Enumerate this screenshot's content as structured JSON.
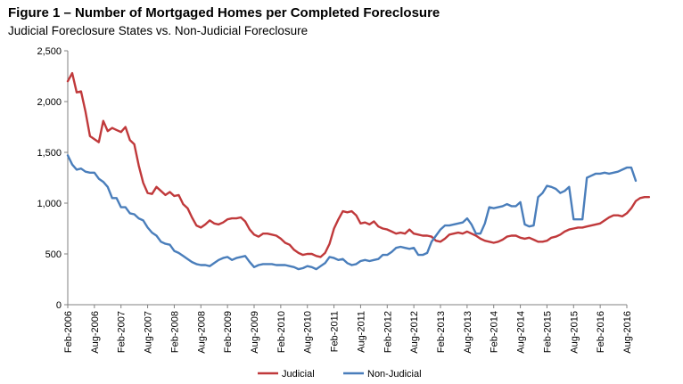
{
  "chart_data": {
    "type": "line",
    "title": "Figure 1 – Number of Mortgaged Homes per Completed Foreclosure",
    "subtitle": "Judicial Foreclosure States vs. Non-Judicial Foreclosure",
    "xlabel": "",
    "ylabel": "",
    "ylim": [
      0,
      2500
    ],
    "yticks": [
      "0",
      "500",
      "1,000",
      "1,500",
      "2,000",
      "2,500"
    ],
    "ytick_values": [
      0,
      500,
      1000,
      1500,
      2000,
      2500
    ],
    "xlim": [
      "Feb-2006",
      "Aug-2016"
    ],
    "xticks": [
      "Feb-2006",
      "Aug-2006",
      "Feb-2007",
      "Aug-2007",
      "Feb-2008",
      "Aug-2008",
      "Feb-2009",
      "Aug-2009",
      "Feb-2010",
      "Aug-2010",
      "Feb-2011",
      "Aug-2011",
      "Feb-2012",
      "Aug-2012",
      "Feb-2013",
      "Aug-2013",
      "Feb-2014",
      "Aug-2014",
      "Feb-2015",
      "Aug-2015",
      "Feb-2016",
      "Aug-2016"
    ],
    "grid": false,
    "legend_position": "bottom",
    "series": [
      {
        "name": "Judicial",
        "color": "#c0393b",
        "points": [
          [
            "Feb-2006",
            2200
          ],
          [
            "Mar-2006",
            2280
          ],
          [
            "Apr-2006",
            2090
          ],
          [
            "May-2006",
            2100
          ],
          [
            "Jun-2006",
            1900
          ],
          [
            "Jul-2006",
            1660
          ],
          [
            "Aug-2006",
            1630
          ],
          [
            "Sep-2006",
            1600
          ],
          [
            "Oct-2006",
            1810
          ],
          [
            "Nov-2006",
            1710
          ],
          [
            "Dec-2006",
            1740
          ],
          [
            "Jan-2007",
            1720
          ],
          [
            "Feb-2007",
            1700
          ],
          [
            "Mar-2007",
            1750
          ],
          [
            "Apr-2007",
            1620
          ],
          [
            "May-2007",
            1580
          ],
          [
            "Jun-2007",
            1370
          ],
          [
            "Jul-2007",
            1200
          ],
          [
            "Aug-2007",
            1100
          ],
          [
            "Sep-2007",
            1090
          ],
          [
            "Oct-2007",
            1160
          ],
          [
            "Nov-2007",
            1120
          ],
          [
            "Dec-2007",
            1080
          ],
          [
            "Jan-2008",
            1110
          ],
          [
            "Feb-2008",
            1070
          ],
          [
            "Mar-2008",
            1080
          ],
          [
            "Apr-2008",
            990
          ],
          [
            "May-2008",
            950
          ],
          [
            "Jun-2008",
            860
          ],
          [
            "Jul-2008",
            780
          ],
          [
            "Aug-2008",
            760
          ],
          [
            "Sep-2008",
            790
          ],
          [
            "Oct-2008",
            830
          ],
          [
            "Nov-2008",
            800
          ],
          [
            "Dec-2008",
            790
          ],
          [
            "Jan-2009",
            810
          ],
          [
            "Feb-2009",
            840
          ],
          [
            "Mar-2009",
            850
          ],
          [
            "Apr-2009",
            850
          ],
          [
            "May-2009",
            860
          ],
          [
            "Jun-2009",
            820
          ],
          [
            "Jul-2009",
            740
          ],
          [
            "Aug-2009",
            690
          ],
          [
            "Sep-2009",
            670
          ],
          [
            "Oct-2009",
            700
          ],
          [
            "Nov-2009",
            700
          ],
          [
            "Dec-2009",
            690
          ],
          [
            "Jan-2010",
            680
          ],
          [
            "Feb-2010",
            650
          ],
          [
            "Mar-2010",
            610
          ],
          [
            "Apr-2010",
            590
          ],
          [
            "May-2010",
            540
          ],
          [
            "Jun-2010",
            510
          ],
          [
            "Jul-2010",
            490
          ],
          [
            "Aug-2010",
            500
          ],
          [
            "Sep-2010",
            500
          ],
          [
            "Oct-2010",
            480
          ],
          [
            "Nov-2010",
            470
          ],
          [
            "Dec-2010",
            510
          ],
          [
            "Jan-2011",
            600
          ],
          [
            "Feb-2011",
            750
          ],
          [
            "Mar-2011",
            840
          ],
          [
            "Apr-2011",
            920
          ],
          [
            "May-2011",
            910
          ],
          [
            "Jun-2011",
            920
          ],
          [
            "Jul-2011",
            880
          ],
          [
            "Aug-2011",
            800
          ],
          [
            "Sep-2011",
            810
          ],
          [
            "Oct-2011",
            790
          ],
          [
            "Nov-2011",
            820
          ],
          [
            "Dec-2011",
            770
          ],
          [
            "Jan-2012",
            750
          ],
          [
            "Feb-2012",
            740
          ],
          [
            "Mar-2012",
            720
          ],
          [
            "Apr-2012",
            700
          ],
          [
            "May-2012",
            710
          ],
          [
            "Jun-2012",
            700
          ],
          [
            "Jul-2012",
            740
          ],
          [
            "Aug-2012",
            700
          ],
          [
            "Sep-2012",
            690
          ],
          [
            "Oct-2012",
            680
          ],
          [
            "Nov-2012",
            680
          ],
          [
            "Dec-2012",
            670
          ],
          [
            "Jan-2013",
            630
          ],
          [
            "Feb-2013",
            620
          ],
          [
            "Mar-2013",
            650
          ],
          [
            "Apr-2013",
            690
          ],
          [
            "May-2013",
            700
          ],
          [
            "Jun-2013",
            710
          ],
          [
            "Jul-2013",
            700
          ],
          [
            "Aug-2013",
            720
          ],
          [
            "Sep-2013",
            700
          ],
          [
            "Oct-2013",
            680
          ],
          [
            "Nov-2013",
            650
          ],
          [
            "Dec-2013",
            630
          ],
          [
            "Jan-2014",
            620
          ],
          [
            "Feb-2014",
            610
          ],
          [
            "Mar-2014",
            620
          ],
          [
            "Apr-2014",
            640
          ],
          [
            "May-2014",
            670
          ],
          [
            "Jun-2014",
            680
          ],
          [
            "Jul-2014",
            680
          ],
          [
            "Aug-2014",
            660
          ],
          [
            "Sep-2014",
            650
          ],
          [
            "Oct-2014",
            660
          ],
          [
            "Nov-2014",
            640
          ],
          [
            "Dec-2014",
            620
          ],
          [
            "Jan-2015",
            620
          ],
          [
            "Feb-2015",
            630
          ],
          [
            "Mar-2015",
            660
          ],
          [
            "Apr-2015",
            670
          ],
          [
            "May-2015",
            690
          ],
          [
            "Jun-2015",
            720
          ],
          [
            "Jul-2015",
            740
          ],
          [
            "Aug-2015",
            750
          ],
          [
            "Sep-2015",
            760
          ],
          [
            "Oct-2015",
            760
          ],
          [
            "Nov-2015",
            770
          ],
          [
            "Dec-2015",
            780
          ],
          [
            "Jan-2016",
            790
          ],
          [
            "Feb-2016",
            800
          ],
          [
            "Mar-2016",
            830
          ],
          [
            "Apr-2016",
            860
          ],
          [
            "May-2016",
            880
          ],
          [
            "Jun-2016",
            880
          ],
          [
            "Jul-2016",
            870
          ],
          [
            "Aug-2016",
            900
          ],
          [
            "Sep-2016",
            950
          ],
          [
            "Oct-2016",
            1020
          ],
          [
            "Nov-2016",
            1050
          ],
          [
            "Dec-2016",
            1060
          ],
          [
            "Jan-2017",
            1060
          ]
        ]
      },
      {
        "name": "Non-Judicial",
        "color": "#4a7ebb",
        "points": [
          [
            "Feb-2006",
            1470
          ],
          [
            "Mar-2006",
            1380
          ],
          [
            "Apr-2006",
            1330
          ],
          [
            "May-2006",
            1340
          ],
          [
            "Jun-2006",
            1310
          ],
          [
            "Jul-2006",
            1300
          ],
          [
            "Aug-2006",
            1300
          ],
          [
            "Sep-2006",
            1240
          ],
          [
            "Oct-2006",
            1210
          ],
          [
            "Nov-2006",
            1160
          ],
          [
            "Dec-2006",
            1050
          ],
          [
            "Jan-2007",
            1050
          ],
          [
            "Feb-2007",
            960
          ],
          [
            "Mar-2007",
            960
          ],
          [
            "Apr-2007",
            900
          ],
          [
            "May-2007",
            890
          ],
          [
            "Jun-2007",
            850
          ],
          [
            "Jul-2007",
            830
          ],
          [
            "Aug-2007",
            760
          ],
          [
            "Sep-2007",
            710
          ],
          [
            "Oct-2007",
            680
          ],
          [
            "Nov-2007",
            620
          ],
          [
            "Dec-2007",
            600
          ],
          [
            "Jan-2008",
            590
          ],
          [
            "Feb-2008",
            530
          ],
          [
            "Mar-2008",
            510
          ],
          [
            "Apr-2008",
            480
          ],
          [
            "May-2008",
            450
          ],
          [
            "Jun-2008",
            420
          ],
          [
            "Jul-2008",
            400
          ],
          [
            "Aug-2008",
            390
          ],
          [
            "Sep-2008",
            390
          ],
          [
            "Oct-2008",
            380
          ],
          [
            "Nov-2008",
            410
          ],
          [
            "Dec-2008",
            440
          ],
          [
            "Jan-2009",
            460
          ],
          [
            "Feb-2009",
            470
          ],
          [
            "Mar-2009",
            440
          ],
          [
            "Apr-2009",
            460
          ],
          [
            "May-2009",
            470
          ],
          [
            "Jun-2009",
            480
          ],
          [
            "Jul-2009",
            420
          ],
          [
            "Aug-2009",
            370
          ],
          [
            "Sep-2009",
            390
          ],
          [
            "Oct-2009",
            400
          ],
          [
            "Nov-2009",
            400
          ],
          [
            "Dec-2009",
            400
          ],
          [
            "Jan-2010",
            390
          ],
          [
            "Feb-2010",
            390
          ],
          [
            "Mar-2010",
            390
          ],
          [
            "Apr-2010",
            380
          ],
          [
            "May-2010",
            370
          ],
          [
            "Jun-2010",
            350
          ],
          [
            "Jul-2010",
            360
          ],
          [
            "Aug-2010",
            380
          ],
          [
            "Sep-2010",
            370
          ],
          [
            "Oct-2010",
            350
          ],
          [
            "Nov-2010",
            380
          ],
          [
            "Dec-2010",
            410
          ],
          [
            "Jan-2011",
            470
          ],
          [
            "Feb-2011",
            460
          ],
          [
            "Mar-2011",
            440
          ],
          [
            "Apr-2011",
            450
          ],
          [
            "May-2011",
            410
          ],
          [
            "Jun-2011",
            390
          ],
          [
            "Jul-2011",
            400
          ],
          [
            "Aug-2011",
            430
          ],
          [
            "Sep-2011",
            440
          ],
          [
            "Oct-2011",
            430
          ],
          [
            "Nov-2011",
            440
          ],
          [
            "Dec-2011",
            450
          ],
          [
            "Jan-2012",
            490
          ],
          [
            "Feb-2012",
            490
          ],
          [
            "Mar-2012",
            520
          ],
          [
            "Apr-2012",
            560
          ],
          [
            "May-2012",
            570
          ],
          [
            "Jun-2012",
            560
          ],
          [
            "Jul-2012",
            550
          ],
          [
            "Aug-2012",
            560
          ],
          [
            "Sep-2012",
            490
          ],
          [
            "Oct-2012",
            490
          ],
          [
            "Nov-2012",
            510
          ],
          [
            "Dec-2012",
            620
          ],
          [
            "Jan-2013",
            680
          ],
          [
            "Feb-2013",
            740
          ],
          [
            "Mar-2013",
            780
          ],
          [
            "Apr-2013",
            780
          ],
          [
            "May-2013",
            790
          ],
          [
            "Jun-2013",
            800
          ],
          [
            "Jul-2013",
            810
          ],
          [
            "Aug-2013",
            850
          ],
          [
            "Sep-2013",
            790
          ],
          [
            "Oct-2013",
            700
          ],
          [
            "Nov-2013",
            700
          ],
          [
            "Dec-2013",
            800
          ],
          [
            "Jan-2014",
            960
          ],
          [
            "Feb-2014",
            950
          ],
          [
            "Mar-2014",
            960
          ],
          [
            "Apr-2014",
            970
          ],
          [
            "May-2014",
            990
          ],
          [
            "Jun-2014",
            970
          ],
          [
            "Jul-2014",
            970
          ],
          [
            "Aug-2014",
            1010
          ],
          [
            "Sep-2014",
            790
          ],
          [
            "Oct-2014",
            770
          ],
          [
            "Nov-2014",
            780
          ],
          [
            "Dec-2014",
            1060
          ],
          [
            "Jan-2015",
            1100
          ],
          [
            "Feb-2015",
            1170
          ],
          [
            "Mar-2015",
            1160
          ],
          [
            "Apr-2015",
            1140
          ],
          [
            "May-2015",
            1100
          ],
          [
            "Jun-2015",
            1120
          ],
          [
            "Jul-2015",
            1160
          ],
          [
            "Aug-2015",
            840
          ],
          [
            "Sep-2015",
            840
          ],
          [
            "Oct-2015",
            840
          ],
          [
            "Nov-2015",
            1250
          ],
          [
            "Dec-2015",
            1270
          ],
          [
            "Jan-2016",
            1290
          ],
          [
            "Feb-2016",
            1290
          ],
          [
            "Mar-2016",
            1300
          ],
          [
            "Apr-2016",
            1290
          ],
          [
            "May-2016",
            1300
          ],
          [
            "Jun-2016",
            1310
          ],
          [
            "Jul-2016",
            1330
          ],
          [
            "Aug-2016",
            1350
          ],
          [
            "Sep-2016",
            1350
          ],
          [
            "Oct-2016",
            1220
          ]
        ]
      }
    ]
  }
}
